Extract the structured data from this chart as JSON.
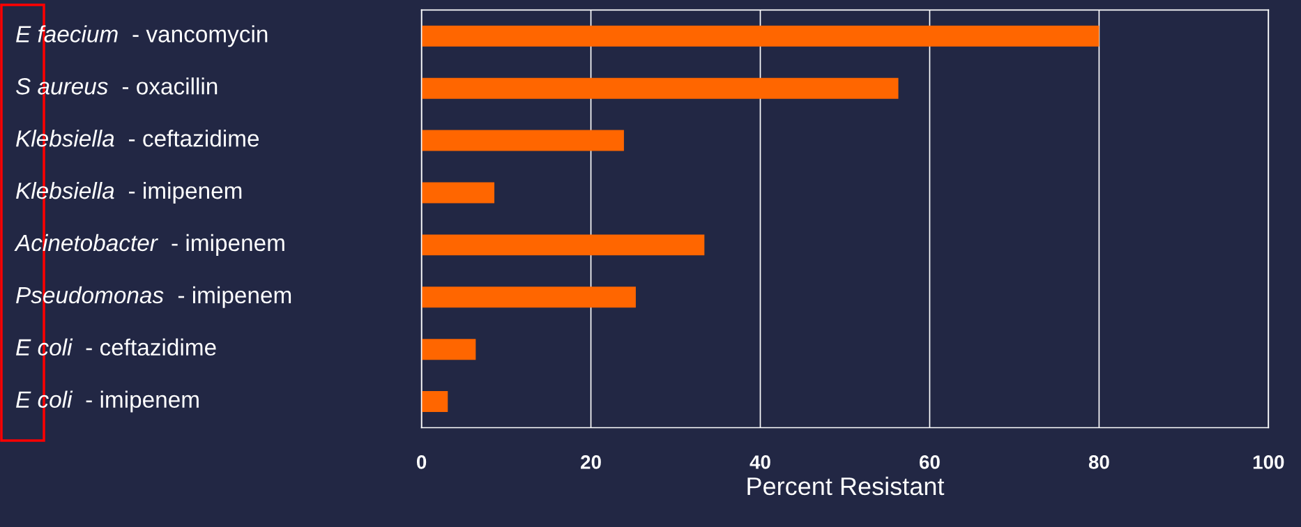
{
  "chart_data": {
    "type": "bar",
    "orientation": "horizontal",
    "xlabel": "Percent Resistant",
    "categories": [
      "E faecium - vancomycin",
      "S aureus - oxacillin",
      "Klebsiella - ceftazidime",
      "Klebsiella - imipenem",
      "Acinetobacter - imipenem",
      "Pseudomonas - imipenem",
      "E coli - ceftazidime",
      "E coli - imipenem"
    ],
    "values": [
      80.0,
      56.3,
      23.9,
      8.6,
      33.4,
      25.3,
      6.4,
      3.1
    ],
    "color": "#ff6600",
    "xlim": [
      0,
      100
    ],
    "xticks": [
      0,
      20,
      40,
      60,
      80,
      100
    ],
    "grid": "x"
  }
}
